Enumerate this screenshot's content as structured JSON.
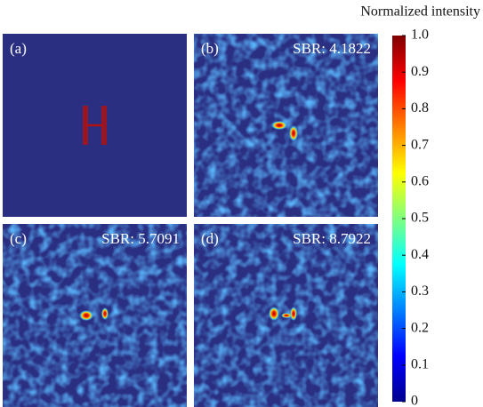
{
  "chart_data": {
    "type": "heatmap",
    "colorbar_title": "Normalized intensity",
    "colormap": "jet",
    "clim": [
      0,
      1
    ],
    "cticks": [
      0,
      0.1,
      0.2,
      0.3,
      0.4,
      0.5,
      0.6,
      0.7,
      0.8,
      0.9,
      {
        "value": 1,
        "label": "1.0"
      }
    ],
    "panels": [
      {
        "label": "(a)"
      },
      {
        "label": "(b)",
        "sbr": "SBR: 4.1822"
      },
      {
        "label": "(c)",
        "sbr": "SBR: 5.7091"
      },
      {
        "label": "(d)",
        "sbr": "SBR: 8.7922"
      }
    ]
  }
}
